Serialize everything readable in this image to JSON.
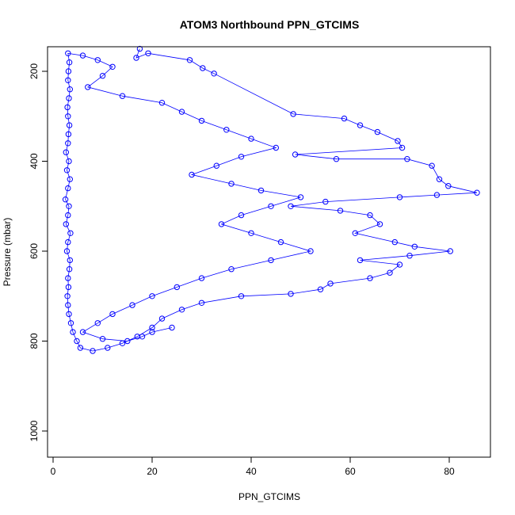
{
  "chart_data": {
    "type": "scatter",
    "title": "ATOM3 Northbound PPN_GTCIMS",
    "xlabel": "PPN_GTCIMS",
    "ylabel": "Pressure (mbar)",
    "xlim": [
      0,
      88
    ],
    "ylim": [
      1050,
      150
    ],
    "y_reversed": true,
    "x_ticks": [
      0,
      20,
      40,
      60,
      80
    ],
    "y_ticks": [
      200,
      400,
      600,
      800,
      1000
    ],
    "grid": false,
    "legend": "none",
    "marker": "open-circle",
    "connected_with_lines": true,
    "series_color": "#0000ff",
    "series": [
      {
        "points": [
          [
            17.5,
            150
          ],
          [
            16.8,
            170
          ],
          [
            19.2,
            160
          ],
          [
            27.6,
            175
          ],
          [
            30.2,
            193
          ],
          [
            32.5,
            205
          ],
          [
            48.5,
            295
          ],
          [
            58.8,
            305
          ],
          [
            62.0,
            320
          ],
          [
            65.5,
            335
          ],
          [
            69.6,
            355
          ],
          [
            70.5,
            370
          ],
          [
            48.9,
            385
          ],
          [
            57.2,
            395
          ],
          [
            71.5,
            395
          ],
          [
            76.5,
            410
          ],
          [
            78.0,
            440
          ],
          [
            79.8,
            455
          ],
          [
            85.6,
            470
          ],
          [
            77.5,
            475
          ],
          [
            70.0,
            480
          ],
          [
            55.0,
            490
          ],
          [
            48.0,
            500
          ],
          [
            58.0,
            510
          ],
          [
            64.0,
            520
          ],
          [
            66.0,
            540
          ],
          [
            61.0,
            560
          ],
          [
            69.0,
            580
          ],
          [
            73.0,
            590
          ],
          [
            80.2,
            600
          ],
          [
            72.0,
            610
          ],
          [
            62.0,
            620
          ],
          [
            70.0,
            630
          ],
          [
            68.0,
            648
          ],
          [
            64.0,
            660
          ],
          [
            56.0,
            672
          ],
          [
            54.0,
            685
          ],
          [
            48.0,
            695
          ],
          [
            38.0,
            700
          ],
          [
            30.0,
            715
          ],
          [
            26.0,
            730
          ],
          [
            22.0,
            750
          ],
          [
            20.0,
            770
          ],
          [
            17.0,
            790
          ],
          [
            14.0,
            805
          ],
          [
            11.0,
            815
          ],
          [
            8.0,
            822
          ],
          [
            5.5,
            815
          ],
          [
            4.8,
            800
          ],
          [
            4.0,
            780
          ],
          [
            3.6,
            760
          ],
          [
            3.2,
            740
          ],
          [
            3.0,
            720
          ],
          [
            2.9,
            700
          ],
          [
            3.1,
            680
          ],
          [
            3.0,
            660
          ],
          [
            3.3,
            640
          ],
          [
            3.4,
            620
          ],
          [
            2.8,
            600
          ],
          [
            3.0,
            580
          ],
          [
            3.5,
            560
          ],
          [
            2.6,
            540
          ],
          [
            3.0,
            520
          ],
          [
            3.2,
            500
          ],
          [
            2.5,
            485
          ],
          [
            3.0,
            460
          ],
          [
            3.4,
            440
          ],
          [
            2.8,
            420
          ],
          [
            3.2,
            400
          ],
          [
            2.6,
            380
          ],
          [
            3.0,
            360
          ],
          [
            3.1,
            340
          ],
          [
            3.3,
            320
          ],
          [
            3.0,
            300
          ],
          [
            2.9,
            280
          ],
          [
            3.2,
            260
          ],
          [
            3.4,
            240
          ],
          [
            3.0,
            220
          ],
          [
            3.1,
            200
          ],
          [
            3.3,
            180
          ],
          [
            3.0,
            160
          ],
          [
            6.0,
            165
          ],
          [
            9.0,
            175
          ],
          [
            12.0,
            190
          ],
          [
            10.0,
            210
          ],
          [
            7.0,
            235
          ],
          [
            14.0,
            255
          ],
          [
            22.0,
            270
          ],
          [
            26.0,
            290
          ],
          [
            30.0,
            310
          ],
          [
            35.0,
            330
          ],
          [
            40.0,
            350
          ],
          [
            45.0,
            370
          ],
          [
            38.0,
            390
          ],
          [
            33.0,
            410
          ],
          [
            28.0,
            430
          ],
          [
            36.0,
            450
          ],
          [
            42.0,
            465
          ],
          [
            50.0,
            480
          ],
          [
            44.0,
            500
          ],
          [
            38.0,
            520
          ],
          [
            34.0,
            540
          ],
          [
            40.0,
            560
          ],
          [
            46.0,
            580
          ],
          [
            52.0,
            600
          ],
          [
            44.0,
            620
          ],
          [
            36.0,
            640
          ],
          [
            30.0,
            660
          ],
          [
            25.0,
            680
          ],
          [
            20.0,
            700
          ],
          [
            16.0,
            720
          ],
          [
            12.0,
            740
          ],
          [
            9.0,
            760
          ],
          [
            6.0,
            780
          ],
          [
            10.0,
            795
          ],
          [
            15.0,
            800
          ],
          [
            18.0,
            790
          ],
          [
            20.0,
            780
          ],
          [
            24.0,
            770
          ]
        ]
      }
    ]
  }
}
